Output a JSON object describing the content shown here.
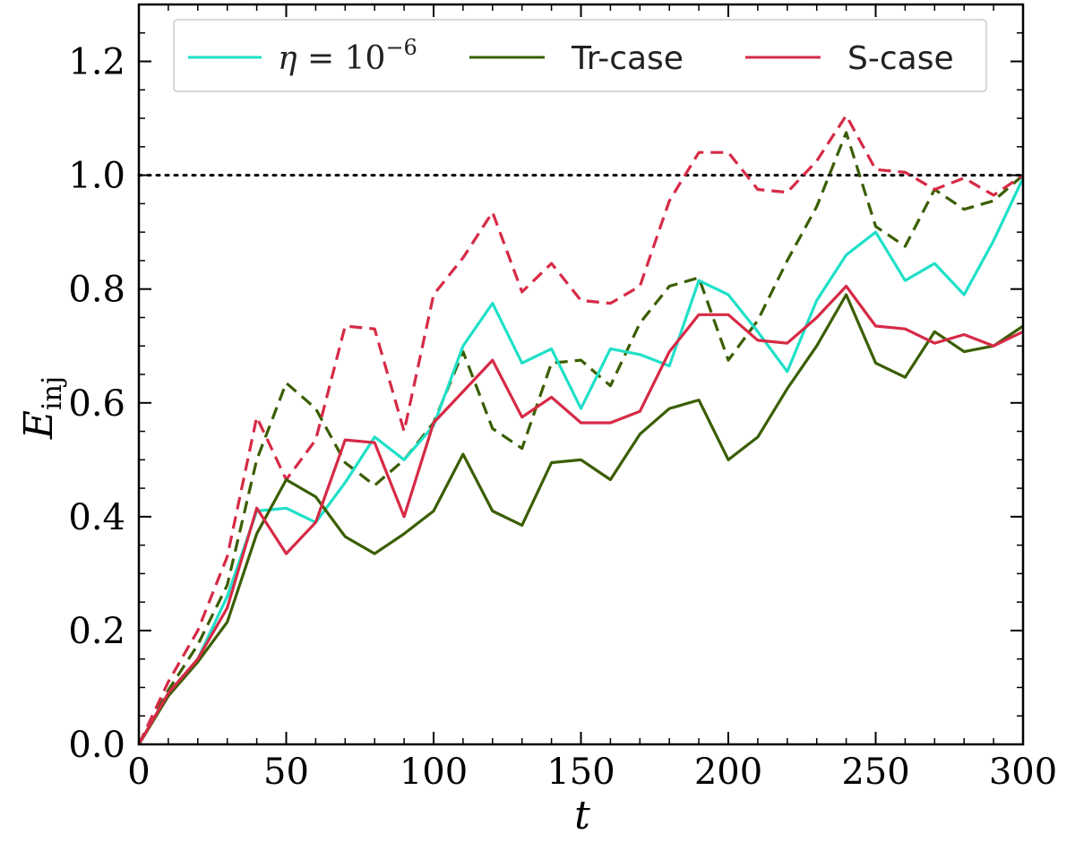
{
  "chart_data": {
    "type": "line",
    "title": "",
    "xlabel": "t",
    "ylabel": {
      "main": "E",
      "sub": "inj"
    },
    "xlim": [
      0,
      300
    ],
    "ylim": [
      0,
      1.3
    ],
    "xticks": [
      0,
      50,
      100,
      150,
      200,
      250,
      300
    ],
    "xtick_labels": [
      "0",
      "50",
      "100",
      "150",
      "200",
      "250",
      "300"
    ],
    "yticks": [
      0.0,
      0.2,
      0.4,
      0.6,
      0.8,
      1.0,
      1.2
    ],
    "ytick_labels": [
      "0.0",
      "0.2",
      "0.4",
      "0.6",
      "0.8",
      "1.0",
      "1.2"
    ],
    "grid": false,
    "legend_position": "top",
    "legend": [
      {
        "label": "η = 10",
        "sup": "−6",
        "color": "#1fe0c8"
      },
      {
        "label": "Tr-case",
        "color": "#3a5e00"
      },
      {
        "label": "S-case",
        "color": "#d62a46"
      }
    ],
    "reference_line": {
      "y": 1.0,
      "style": "dotted",
      "color": "#000000"
    },
    "x": [
      0,
      10,
      20,
      30,
      40,
      50,
      60,
      70,
      80,
      90,
      100,
      110,
      120,
      130,
      140,
      150,
      160,
      170,
      180,
      190,
      200,
      210,
      220,
      230,
      240,
      250,
      260,
      270,
      280,
      290,
      300
    ],
    "series": [
      {
        "name": "η = 10^-6",
        "color": "#1fe0c8",
        "dash": "solid",
        "values": [
          0,
          0.09,
          0.15,
          0.26,
          0.41,
          0.415,
          0.39,
          0.46,
          0.54,
          0.5,
          0.56,
          0.7,
          0.775,
          0.67,
          0.695,
          0.59,
          0.695,
          0.685,
          0.665,
          0.815,
          0.79,
          0.725,
          0.655,
          0.78,
          0.86,
          0.9,
          0.815,
          0.845,
          0.79,
          0.885,
          0.995
        ]
      },
      {
        "name": "Tr-case",
        "color": "#3a5e00",
        "dash": "solid",
        "values": [
          0,
          0.085,
          0.145,
          0.215,
          0.37,
          0.465,
          0.435,
          0.365,
          0.335,
          0.37,
          0.41,
          0.51,
          0.41,
          0.385,
          0.495,
          0.5,
          0.465,
          0.545,
          0.59,
          0.605,
          0.5,
          0.54,
          0.625,
          0.7,
          0.79,
          0.67,
          0.645,
          0.725,
          0.69,
          0.7,
          0.735
        ]
      },
      {
        "name": "S-case",
        "color": "#d62a46",
        "dash": "solid",
        "values": [
          0,
          0.09,
          0.15,
          0.24,
          0.415,
          0.335,
          0.39,
          0.535,
          0.53,
          0.4,
          0.565,
          0.62,
          0.675,
          0.575,
          0.61,
          0.565,
          0.565,
          0.585,
          0.69,
          0.755,
          0.755,
          0.71,
          0.705,
          0.75,
          0.805,
          0.735,
          0.73,
          0.705,
          0.72,
          0.7,
          0.725
        ]
      },
      {
        "name": "",
        "color": "#3a5e00",
        "dash": "dashed",
        "values": [
          0,
          0.095,
          0.175,
          0.28,
          0.5,
          0.635,
          0.59,
          0.495,
          0.455,
          0.5,
          0.565,
          0.69,
          0.555,
          0.52,
          0.67,
          0.675,
          0.63,
          0.74,
          0.805,
          0.82,
          0.675,
          0.745,
          0.85,
          0.945,
          1.075,
          0.91,
          0.875,
          0.975,
          0.94,
          0.955,
          1.0
        ]
      },
      {
        "name": "",
        "color": "#d62a46",
        "dash": "dashed",
        "values": [
          0,
          0.11,
          0.2,
          0.33,
          0.575,
          0.465,
          0.535,
          0.735,
          0.73,
          0.55,
          0.79,
          0.855,
          0.935,
          0.795,
          0.845,
          0.78,
          0.775,
          0.805,
          0.955,
          1.04,
          1.04,
          0.975,
          0.97,
          1.025,
          1.105,
          1.01,
          1.005,
          0.975,
          0.995,
          0.965,
          1.0
        ]
      }
    ]
  }
}
